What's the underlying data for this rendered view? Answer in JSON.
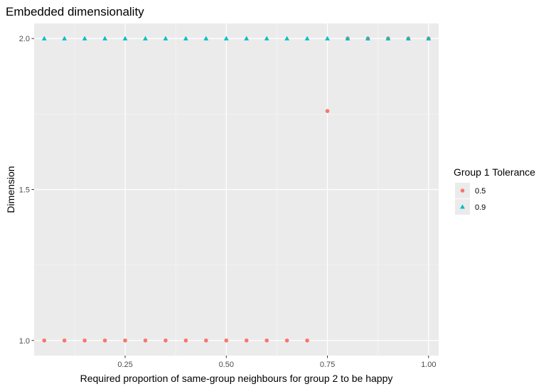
{
  "chart_data": {
    "type": "scatter",
    "title": "Embedded dimensionality",
    "xlabel": "Required proportion of same-group neighbours for group 2 to be happy",
    "ylabel": "Dimension",
    "xlim": [
      0.025,
      1.025
    ],
    "ylim": [
      0.95,
      2.05
    ],
    "x_ticks": [
      0.25,
      0.5,
      0.75,
      1.0
    ],
    "x_tick_labels": [
      "0.25",
      "0.50",
      "0.75",
      "1.00"
    ],
    "x_minor_ticks": [
      0.125,
      0.375,
      0.625,
      0.875
    ],
    "y_ticks": [
      1.0,
      1.5,
      2.0
    ],
    "y_tick_labels": [
      "1.0",
      "1.5",
      "2.0"
    ],
    "y_minor_ticks": [
      1.25,
      1.75
    ],
    "grid": true,
    "legend": {
      "title": "Group 1 Tolerance",
      "position": "right"
    },
    "series": [
      {
        "name": "0.5",
        "marker": "circle",
        "color": "#F8766D",
        "x": [
          0.05,
          0.1,
          0.15,
          0.2,
          0.25,
          0.3,
          0.35,
          0.4,
          0.45,
          0.5,
          0.55,
          0.6,
          0.65,
          0.7,
          0.75,
          0.8,
          0.85,
          0.9,
          0.95,
          1.0
        ],
        "y": [
          1.0,
          1.0,
          1.0,
          1.0,
          1.0,
          1.0,
          1.0,
          1.0,
          1.0,
          1.0,
          1.0,
          1.0,
          1.0,
          1.0,
          1.76,
          2.0,
          2.0,
          2.0,
          2.0,
          2.0
        ]
      },
      {
        "name": "0.9",
        "marker": "triangle",
        "color": "#00BFC4",
        "x": [
          0.05,
          0.1,
          0.15,
          0.2,
          0.25,
          0.3,
          0.35,
          0.4,
          0.45,
          0.5,
          0.55,
          0.6,
          0.65,
          0.7,
          0.75,
          0.8,
          0.85,
          0.9,
          0.95,
          1.0
        ],
        "y": [
          2.0,
          2.0,
          2.0,
          2.0,
          2.0,
          2.0,
          2.0,
          2.0,
          2.0,
          2.0,
          2.0,
          2.0,
          2.0,
          2.0,
          2.0,
          2.0,
          2.0,
          2.0,
          2.0,
          2.0
        ]
      }
    ],
    "colors": {
      "panel_background": "#EBEBEB",
      "grid_major": "#FFFFFF",
      "grid_minor": "#F5F5F5",
      "tick_text": "#4D4D4D"
    }
  }
}
